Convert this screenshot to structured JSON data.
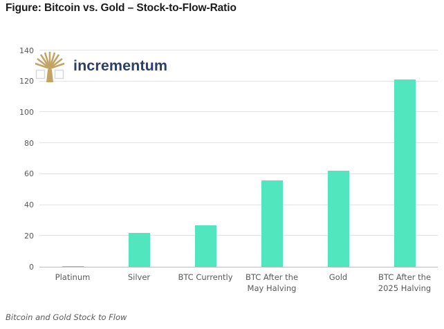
{
  "header": {
    "title": "Figure: Bitcoin vs. Gold – Stock-to-Flow-Ratio"
  },
  "logo": {
    "brand": "incrementum",
    "icon": "tree-icon",
    "tree_color": "#c3a464",
    "text_color": "#2b3f6b"
  },
  "footer": {
    "caption": "Bitcoin and Gold Stock to Flow"
  },
  "chart_data": {
    "type": "bar",
    "title": "Figure: Bitcoin vs. Gold – Stock-to-Flow-Ratio",
    "categories": [
      "Platinum",
      "Silver",
      "BTC Currently",
      "BTC After the\nMay Halving",
      "Gold",
      "BTC After the\n2025 Halving"
    ],
    "values": [
      0.5,
      22,
      27,
      56,
      62,
      121
    ],
    "xlabel": "",
    "ylabel": "",
    "ylim": [
      0,
      140
    ],
    "yticks": [
      0,
      20,
      40,
      60,
      80,
      100,
      120,
      140
    ],
    "grid": true,
    "legend": "none",
    "bar_color": "#52e6bf",
    "gridline_color": "#e2e2e2",
    "axis_label_color": "#595959"
  }
}
